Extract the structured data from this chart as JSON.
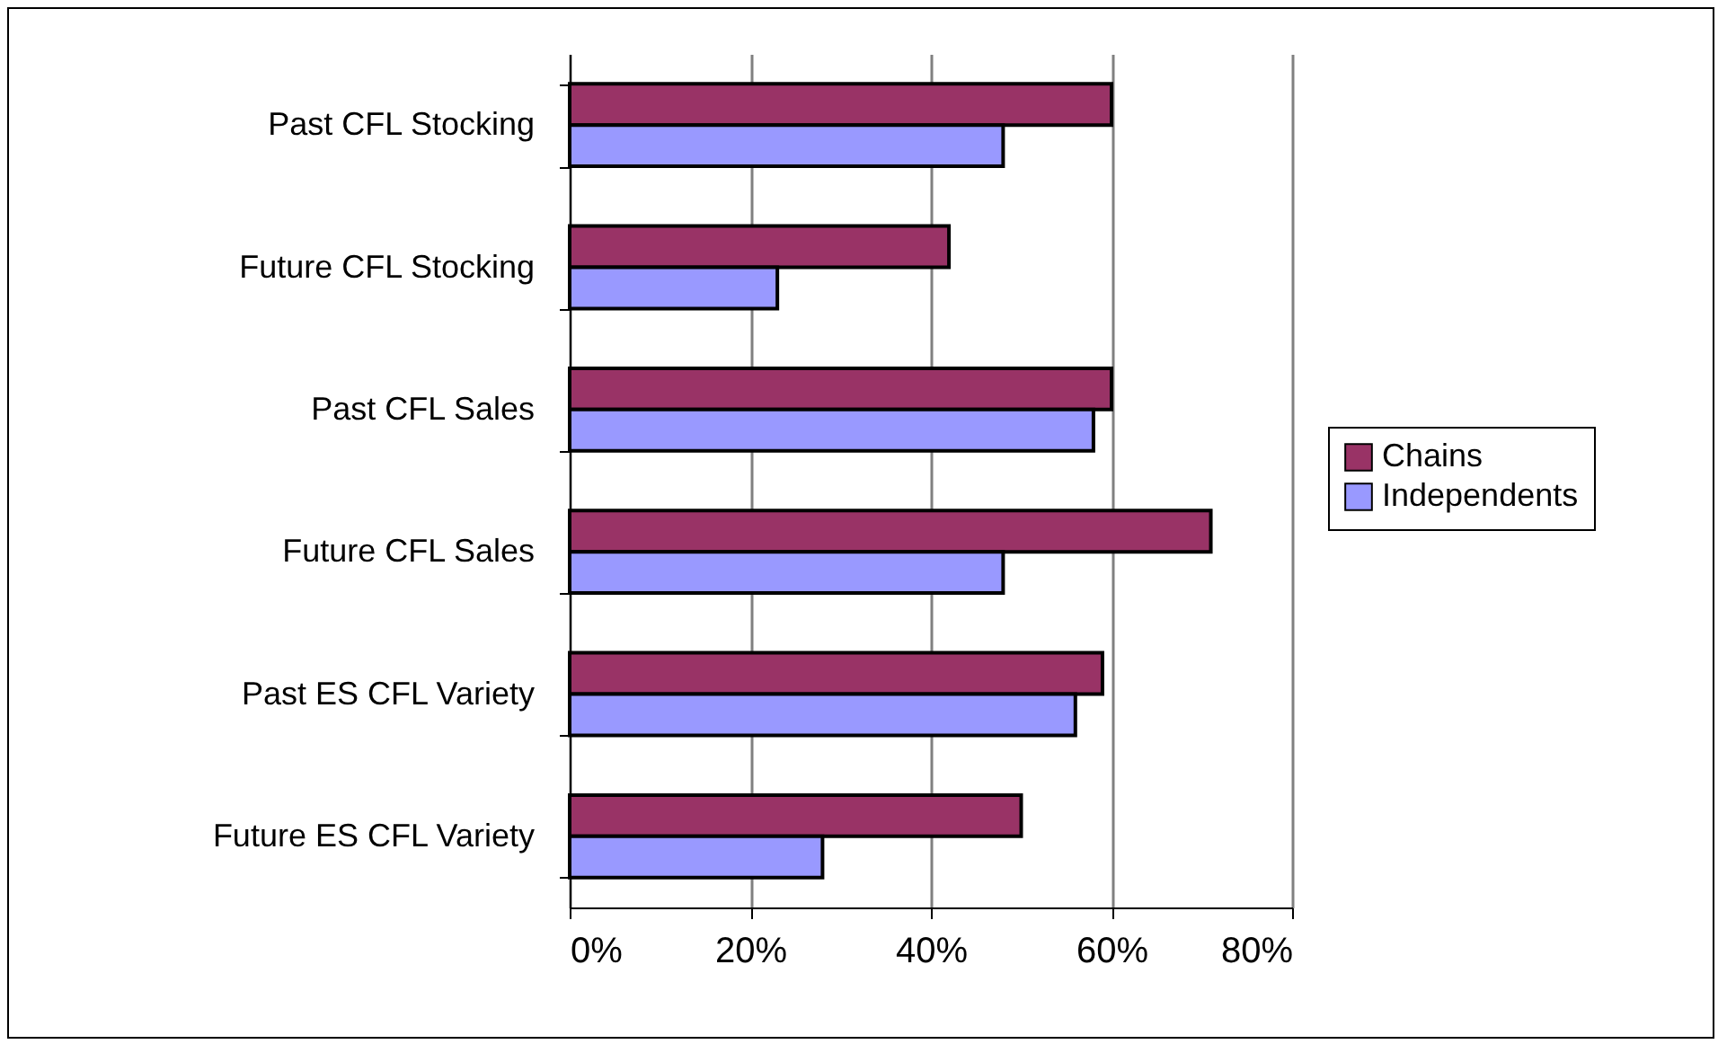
{
  "chart_data": {
    "type": "bar",
    "orientation": "horizontal",
    "categories": [
      "Past CFL Stocking",
      "Future CFL Stocking",
      "Past CFL Sales",
      "Future CFL Sales",
      "Past ES CFL Variety",
      "Future ES CFL Variety"
    ],
    "series": [
      {
        "name": "Chains",
        "color": "#993366",
        "values": [
          60,
          42,
          60,
          71,
          59,
          50
        ]
      },
      {
        "name": "Independents",
        "color": "#9999ff",
        "values": [
          48,
          23,
          58,
          48,
          56,
          28
        ]
      }
    ],
    "xlim": [
      0,
      80
    ],
    "xticks": [
      {
        "value": 0,
        "label": "0%"
      },
      {
        "value": 20,
        "label": "20%"
      },
      {
        "value": 40,
        "label": "40%"
      },
      {
        "value": 60,
        "label": "60%"
      },
      {
        "value": 80,
        "label": "80%"
      }
    ],
    "grid": "x",
    "legend": "right"
  }
}
